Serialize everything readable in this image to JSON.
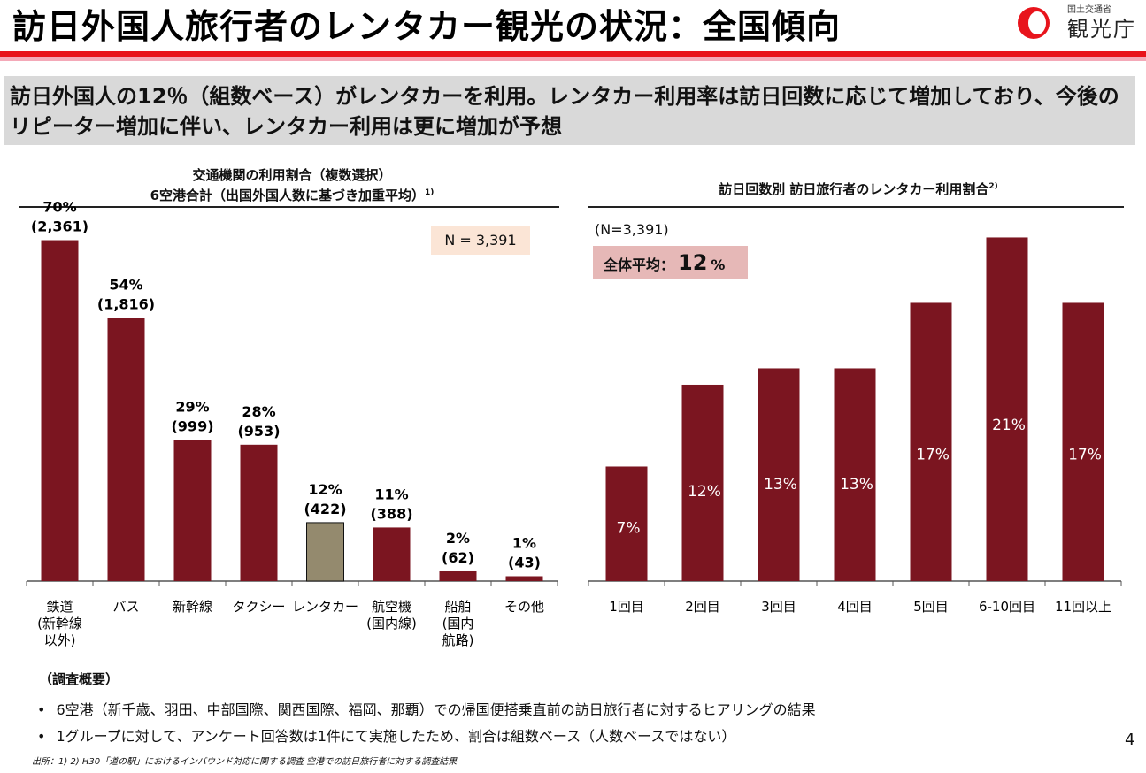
{
  "header": {
    "title": "訪日外国人旅行者のレンタカー観光の状況：全国傾向",
    "logo_ministry": "国土交通省",
    "logo_agency": "観光庁"
  },
  "summary": "訪日外国人の12％（組数ベース）がレンタカーを利用。レンタカー利用率は訪日回数に応じて増加しており、今後のリピーター増加に伴い、レンタカー利用は更に増加が予想",
  "left_chart": {
    "title_line1": "交通機関の利用割合（複数選択）",
    "title_line2": "6空港合計（出国外国人数に基づき加重平均）",
    "title_sup": "1)",
    "n_label": "N = 3,391"
  },
  "right_chart": {
    "title": "訪日回数別 訪日旅行者のレンタカー利用割合",
    "title_sup": "2)",
    "n_label": "(N=3,391)",
    "avg_label": "全体平均：",
    "avg_value": "12",
    "avg_unit": "%"
  },
  "chart_data": [
    {
      "type": "bar",
      "title": "交通機関の利用割合（複数選択） 6空港合計（出国外国人数に基づき加重平均）",
      "categories": [
        "鉄道\n(新幹線\n以外)",
        "バス",
        "新幹線",
        "タクシー",
        "レンタカー",
        "航空機\n(国内線)",
        "船舶\n(国内\n航路)",
        "その他"
      ],
      "values": [
        70,
        54,
        29,
        28,
        12,
        11,
        2,
        1
      ],
      "percent_labels": [
        "70%",
        "54%",
        "29%",
        "28%",
        "12%",
        "11%",
        "2%",
        "1%"
      ],
      "count_labels": [
        "(2,361)",
        "(1,816)",
        "(999)",
        "(953)",
        "(422)",
        "(388)",
        "(62)",
        "(43)"
      ],
      "highlight_index": 4,
      "ylim": [
        0,
        75
      ],
      "colors": {
        "bar": "#7b1520",
        "highlight": "#948a6e"
      }
    },
    {
      "type": "bar",
      "title": "訪日回数別 訪日旅行者のレンタカー利用割合",
      "categories": [
        "1回目",
        "2回目",
        "3回目",
        "4回目",
        "5回目",
        "6-10回目",
        "11回以上"
      ],
      "values": [
        7,
        12,
        13,
        13,
        17,
        21,
        17
      ],
      "value_labels": [
        "7%",
        "12%",
        "13%",
        "13%",
        "17%",
        "21%",
        "17%"
      ],
      "ylim": [
        0,
        22.7
      ],
      "colors": {
        "bar": "#7b1520"
      }
    }
  ],
  "survey": {
    "heading": "（調査概要）",
    "bullet_mark": "•",
    "bullets": [
      "6空港（新千歳、羽田、中部国際、関西国際、福岡、那覇）での帰国便搭乗直前の訪日旅行者に対するヒアリングの結果",
      "1グループに対して、アンケート回答数は1件にて実施したため、割合は組数ベース（人数ベースではない）"
    ]
  },
  "source": "出所：1) 2) H30「道の駅」におけるインバウンド対応に関する調査 空港での訪日旅行者に対する調査結果",
  "page_number": "4"
}
